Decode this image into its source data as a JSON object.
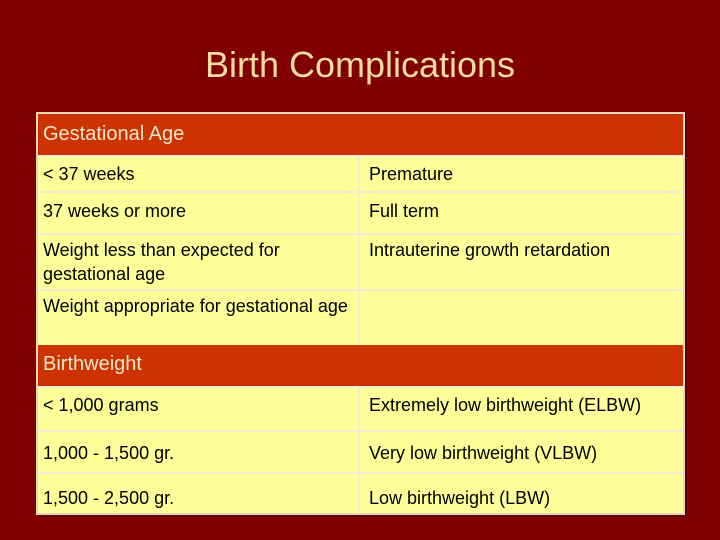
{
  "slide": {
    "title": "Birth Complications"
  },
  "table": {
    "sections": [
      {
        "label": "Gestational Age",
        "rows": [
          {
            "left": "< 37 weeks",
            "right": "Premature"
          },
          {
            "left": "37 weeks or more",
            "right": "Full term"
          },
          {
            "left": "Weight less than expected for gestational age",
            "right": "Intrauterine growth retardation"
          },
          {
            "left": "Weight appropriate for gestational age",
            "right": ""
          }
        ]
      },
      {
        "label": "Birthweight",
        "rows": [
          {
            "left": "< 1,000 grams",
            "right": "Extremely low birthweight (ELBW)"
          },
          {
            "left": "1,000 - 1,500 gr.",
            "right": "Very low birthweight (VLBW)"
          },
          {
            "left": "1,500 - 2,500 gr.",
            "right": "Low birthweight (LBW)"
          }
        ]
      }
    ]
  },
  "colors": {
    "background": "#800000",
    "title": "#f5dca0",
    "section_header": "#cc3300",
    "cell": "#ffff99"
  }
}
